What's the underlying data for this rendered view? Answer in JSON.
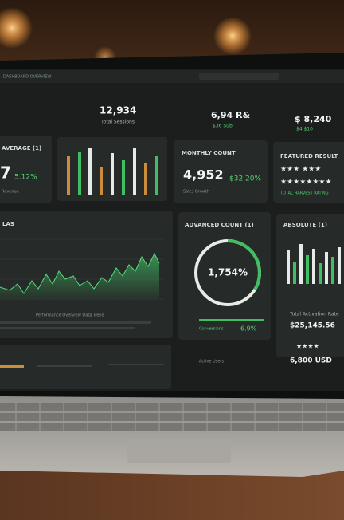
{
  "header": {
    "breadcrumb": "DASHBOARD OVERVIEW"
  },
  "stats": [
    {
      "value": "12,934",
      "label": "Total Sessions"
    },
    {
      "value": "6,94 R&",
      "label": "$36 Sub"
    },
    {
      "value": "$ 8,240",
      "label": "$4 $10"
    }
  ],
  "cards": {
    "average": {
      "title": "AVERAGE (1)",
      "value": "7",
      "change": "5.12%",
      "side": "Revenue"
    },
    "monthly": {
      "title": "MONTHLY COUNT",
      "value": "4,952",
      "change": "$32.20%",
      "sub": "Sales Growth"
    },
    "featured": {
      "title": "FEATURED RESULT",
      "sub": "TOTAL HARVEST RATING"
    },
    "line": {
      "title": "LAS",
      "note": "Performance Overview Data Trend"
    },
    "gauge": {
      "title": "ADVANCED COUNT (1)",
      "value": "1,754%",
      "row_label": "Conversions",
      "row_value": "6.9%",
      "row2": "Active Users"
    },
    "absolute": {
      "title": "ABSOLUTE (1)",
      "sub": "Total Activation Rate",
      "value": "$25,145.56",
      "bottom": "6,800 USD"
    }
  }
}
